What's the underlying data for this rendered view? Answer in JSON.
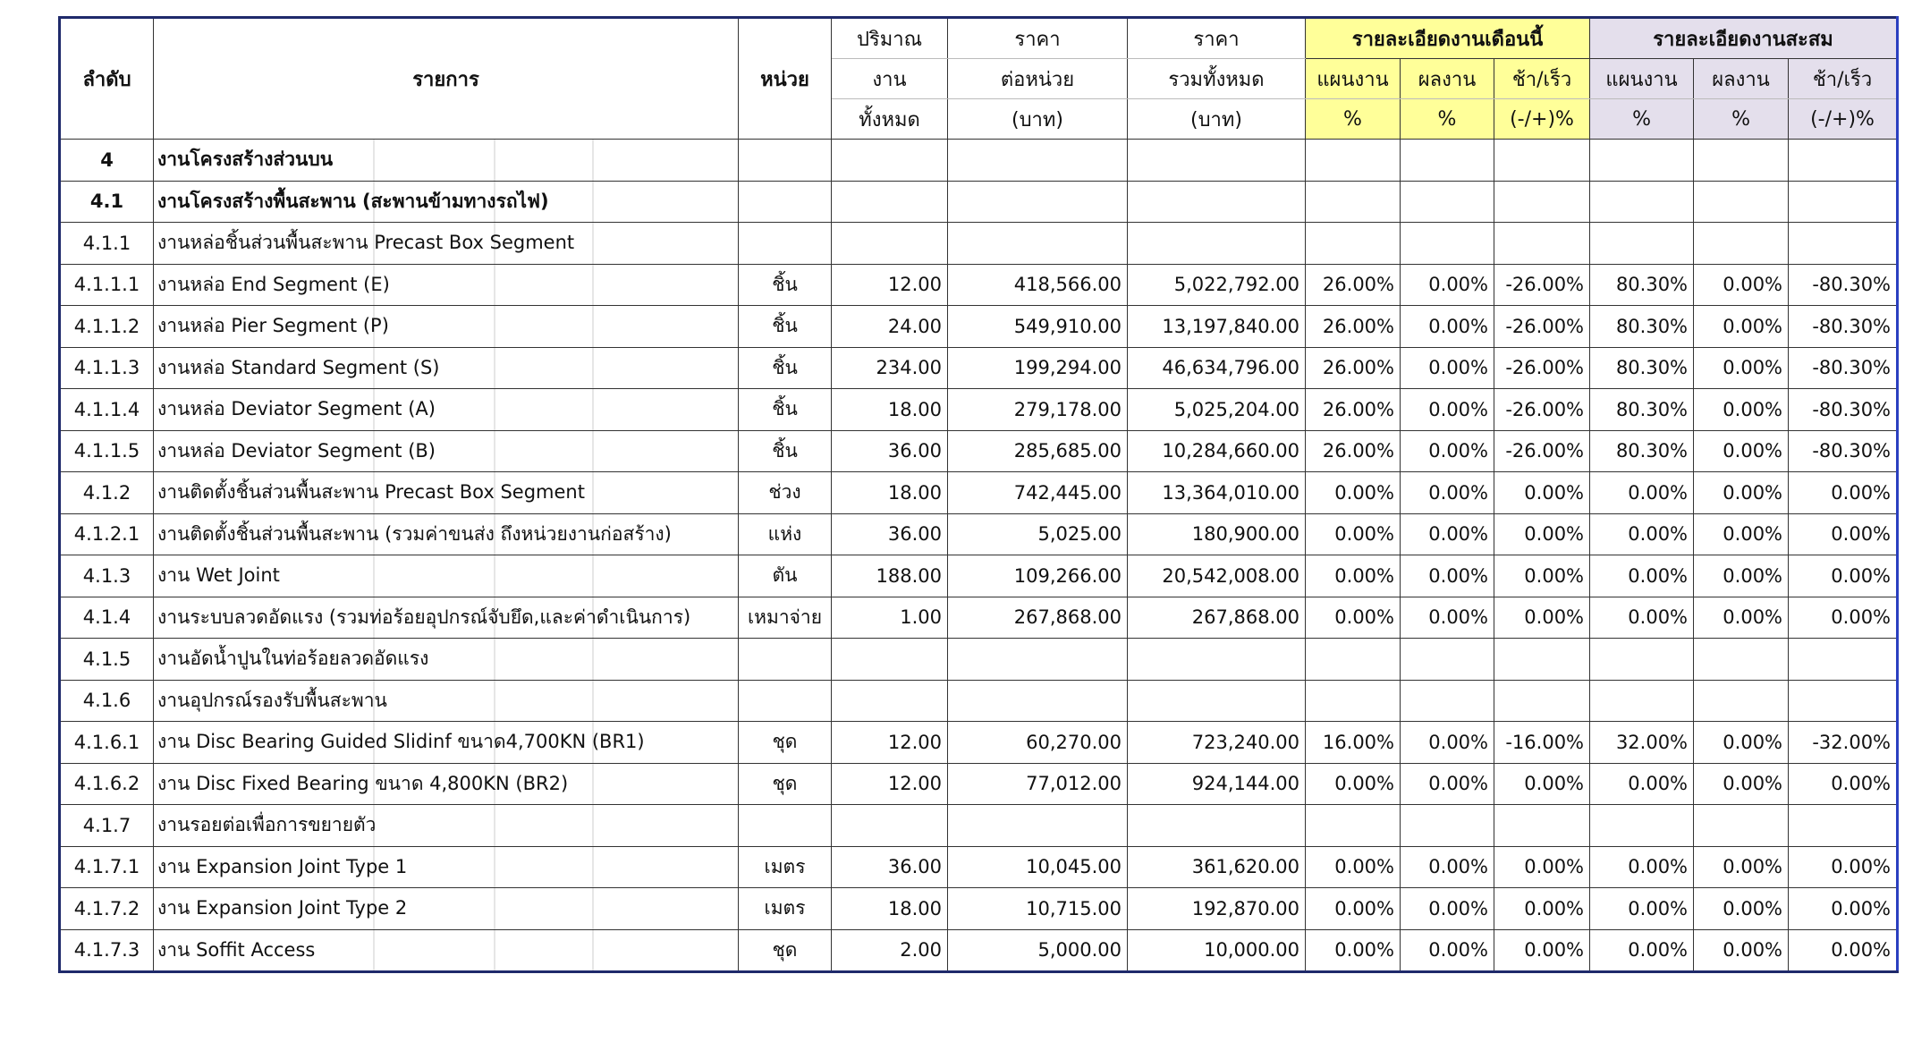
{
  "header": {
    "no": "ลำดับ",
    "item": "รายการ",
    "unit": "หน่วย",
    "qty": [
      "ปริมาณ",
      "งาน",
      "ทั้งหมด"
    ],
    "price": [
      "ราคา",
      "ต่อหน่วย",
      "(บาท)"
    ],
    "total": [
      "ราคา",
      "รวมทั้งหมด",
      "(บาท)"
    ],
    "month": {
      "title": "รายละเอียดงานเดือนนี้",
      "columns": [
        [
          "แผนงาน",
          "%"
        ],
        [
          "ผลงาน",
          "%"
        ],
        [
          "ช้า/เร็ว",
          "(-/+)%"
        ]
      ]
    },
    "cumulative": {
      "title": "รายละเอียดงานสะสม",
      "columns": [
        [
          "แผนงาน",
          "%"
        ],
        [
          "ผลงาน",
          "%"
        ],
        [
          "ช้า/เร็ว",
          "(-/+)%"
        ]
      ]
    }
  },
  "rows": [
    {
      "no": "4",
      "item": "งานโครงสร้างส่วนบน"
    },
    {
      "no": "4.1",
      "item": "งานโครงสร้างพื้นสะพาน (สะพานข้ามทางรถไฟ)"
    },
    {
      "no": "4.1.1",
      "item": "งานหล่อชิ้นส่วนพื้นสะพาน Precast Box Segment"
    },
    {
      "no": "4.1.1.1",
      "item": "งานหล่อ End Segment (E)",
      "unit": "ชิ้น",
      "qty": "12.00",
      "price": "418,566.00",
      "total": "5,022,792.00",
      "month": [
        "26.00%",
        "0.00%",
        "-26.00%"
      ],
      "cumulative": [
        "80.30%",
        "0.00%",
        "-80.30%"
      ]
    },
    {
      "no": "4.1.1.2",
      "item": "งานหล่อ Pier Segment (P)",
      "unit": "ชิ้น",
      "qty": "24.00",
      "price": "549,910.00",
      "total": "13,197,840.00",
      "month": [
        "26.00%",
        "0.00%",
        "-26.00%"
      ],
      "cumulative": [
        "80.30%",
        "0.00%",
        "-80.30%"
      ]
    },
    {
      "no": "4.1.1.3",
      "item": "งานหล่อ Standard Segment (S)",
      "unit": "ชิ้น",
      "qty": "234.00",
      "price": "199,294.00",
      "total": "46,634,796.00",
      "month": [
        "26.00%",
        "0.00%",
        "-26.00%"
      ],
      "cumulative": [
        "80.30%",
        "0.00%",
        "-80.30%"
      ]
    },
    {
      "no": "4.1.1.4",
      "item": "งานหล่อ Deviator Segment (A)",
      "unit": "ชิ้น",
      "qty": "18.00",
      "price": "279,178.00",
      "total": "5,025,204.00",
      "month": [
        "26.00%",
        "0.00%",
        "-26.00%"
      ],
      "cumulative": [
        "80.30%",
        "0.00%",
        "-80.30%"
      ]
    },
    {
      "no": "4.1.1.5",
      "item": "งานหล่อ Deviator Segment (B)",
      "unit": "ชิ้น",
      "qty": "36.00",
      "price": "285,685.00",
      "total": "10,284,660.00",
      "month": [
        "26.00%",
        "0.00%",
        "-26.00%"
      ],
      "cumulative": [
        "80.30%",
        "0.00%",
        "-80.30%"
      ]
    },
    {
      "no": "4.1.2",
      "item": "งานติดตั้งชิ้นส่วนพื้นสะพาน Precast Box Segment",
      "unit": "ช่วง",
      "qty": "18.00",
      "price": "742,445.00",
      "total": "13,364,010.00",
      "month": [
        "0.00%",
        "0.00%",
        "0.00%"
      ],
      "cumulative": [
        "0.00%",
        "0.00%",
        "0.00%"
      ]
    },
    {
      "no": "4.1.2.1",
      "item": "งานติดตั้งชิ้นส่วนพื้นสะพาน (รวมค่าขนส่ง ถึงหน่วยงานก่อสร้าง)",
      "unit": "แห่ง",
      "qty": "36.00",
      "price": "5,025.00",
      "total": "180,900.00",
      "month": [
        "0.00%",
        "0.00%",
        "0.00%"
      ],
      "cumulative": [
        "0.00%",
        "0.00%",
        "0.00%"
      ]
    },
    {
      "no": "4.1.3",
      "item": "งาน Wet Joint",
      "unit": "ตัน",
      "qty": "188.00",
      "price": "109,266.00",
      "total": "20,542,008.00",
      "month": [
        "0.00%",
        "0.00%",
        "0.00%"
      ],
      "cumulative": [
        "0.00%",
        "0.00%",
        "0.00%"
      ]
    },
    {
      "no": "4.1.4",
      "item": "งานระบบลวดอัดแรง (รวมท่อร้อยอุปกรณ์จับยึด,และค่าดำเนินการ)",
      "unit": "เหมาจ่าย",
      "qty": "1.00",
      "price": "267,868.00",
      "total": "267,868.00",
      "month": [
        "0.00%",
        "0.00%",
        "0.00%"
      ],
      "cumulative": [
        "0.00%",
        "0.00%",
        "0.00%"
      ]
    },
    {
      "no": "4.1.5",
      "item": "งานอัดน้ำปูนในท่อร้อยลวดอัดแรง"
    },
    {
      "no": "4.1.6",
      "item": "งานอุปกรณ์รองรับพื้นสะพาน"
    },
    {
      "no": "4.1.6.1",
      "item": "งาน Disc Bearing Guided Slidinf ขนาด4,700KN (BR1)",
      "unit": "ชุด",
      "qty": "12.00",
      "price": "60,270.00",
      "total": "723,240.00",
      "month": [
        "16.00%",
        "0.00%",
        "-16.00%"
      ],
      "cumulative": [
        "32.00%",
        "0.00%",
        "-32.00%"
      ]
    },
    {
      "no": "4.1.6.2",
      "item": "งาน Disc Fixed Bearing ขนาด 4,800KN (BR2)",
      "unit": "ชุด",
      "qty": "12.00",
      "price": "77,012.00",
      "total": "924,144.00",
      "month": [
        "0.00%",
        "0.00%",
        "0.00%"
      ],
      "cumulative": [
        "0.00%",
        "0.00%",
        "0.00%"
      ]
    },
    {
      "no": "4.1.7",
      "item": "งานรอยต่อเพื่อการขยายตัว"
    },
    {
      "no": "4.1.7.1",
      "item": "งาน Expansion Joint Type 1",
      "unit": "เมตร",
      "qty": "36.00",
      "price": "10,045.00",
      "total": "361,620.00",
      "month": [
        "0.00%",
        "0.00%",
        "0.00%"
      ],
      "cumulative": [
        "0.00%",
        "0.00%",
        "0.00%"
      ]
    },
    {
      "no": "4.1.7.2",
      "item": "งาน Expansion Joint Type 2",
      "unit": "เมตร",
      "qty": "18.00",
      "price": "10,715.00",
      "total": "192,870.00",
      "month": [
        "0.00%",
        "0.00%",
        "0.00%"
      ],
      "cumulative": [
        "0.00%",
        "0.00%",
        "0.00%"
      ]
    },
    {
      "no": "4.1.7.3",
      "item": "งาน Soffit Access",
      "unit": "ชุด",
      "qty": "2.00",
      "price": "5,000.00",
      "total": "10,000.00",
      "month": [
        "0.00%",
        "0.00%",
        "0.00%"
      ],
      "cumulative": [
        "0.00%",
        "0.00%",
        "0.00%"
      ]
    }
  ]
}
